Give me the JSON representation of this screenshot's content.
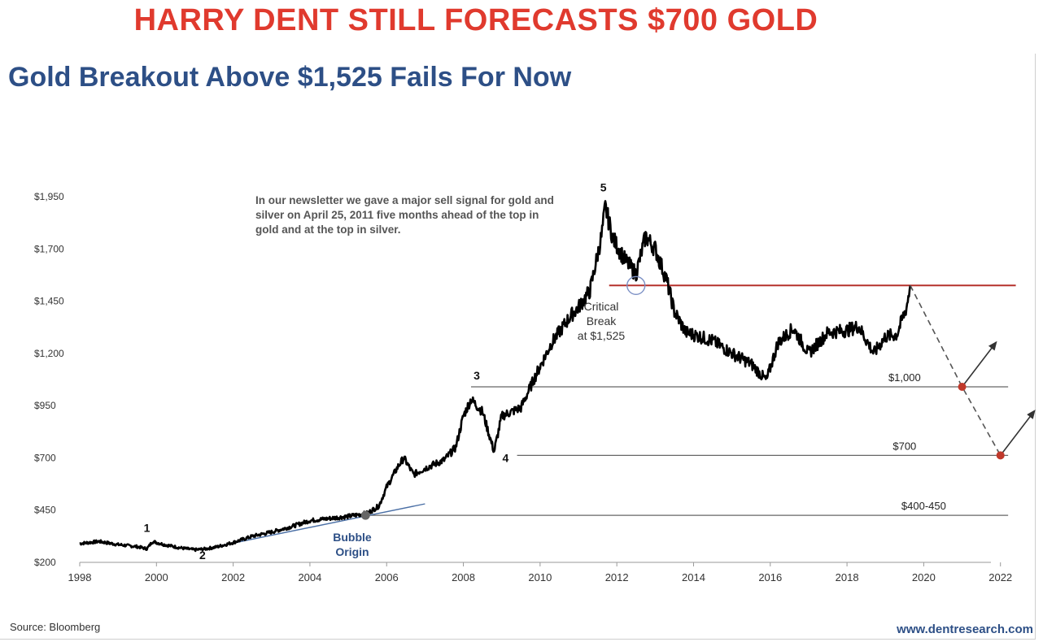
{
  "banner": "HARRY DENT STILL FORECASTS $700 GOLD",
  "subtitle": "Gold Breakout Above $1,525 Fails For Now",
  "note": "In our newsletter we gave a major sell signal for gold and silver on April 25, 2011 five months ahead of the top in gold and at the top in silver.",
  "critical_break": [
    "Critical",
    "Break",
    "at $1,525"
  ],
  "bubble_origin": [
    "Bubble",
    "Origin"
  ],
  "source": "Source: Bloomberg",
  "website": "www.dentresearch.com",
  "colors": {
    "banner": "#e03a2e",
    "subtitle": "#2d4f86",
    "price_line": "#000000",
    "resistance": "#b5312b",
    "support": "#555555",
    "forecast_dot": "#c0392b",
    "trend": "#4a6fa5"
  },
  "chart_data": {
    "type": "line",
    "y_ticks": [
      "$200",
      "$450",
      "$700",
      "$950",
      "$1,200",
      "$1,450",
      "$1,700",
      "$1,950"
    ],
    "y_tick_values": [
      200,
      450,
      700,
      950,
      1200,
      1450,
      1700,
      1950
    ],
    "x_ticks": [
      "1998",
      "2000",
      "2002",
      "2004",
      "2006",
      "2008",
      "2010",
      "2012",
      "2014",
      "2016",
      "2018",
      "2020",
      "2022"
    ],
    "x_tick_values": [
      1998,
      2000,
      2002,
      2004,
      2006,
      2008,
      2010,
      2012,
      2014,
      2016,
      2018,
      2020,
      2022
    ],
    "xlim": [
      1998,
      2022.6
    ],
    "ylim": [
      200,
      1950
    ],
    "series": [
      {
        "x": [
          1998.0,
          1998.5,
          1999.0,
          1999.5,
          1999.75,
          1999.9,
          2000.2,
          2000.6,
          2001.0,
          2001.3,
          2001.6,
          2002.0,
          2002.5,
          2003.0,
          2003.5,
          2004.0,
          2004.5,
          2005.0,
          2005.5,
          2005.8,
          2006.0,
          2006.3,
          2006.45,
          2006.7,
          2007.0,
          2007.5,
          2007.8,
          2008.0,
          2008.2,
          2008.5,
          2008.8,
          2009.0,
          2009.5,
          2009.9,
          2010.3,
          2010.8,
          2011.0,
          2011.3,
          2011.6,
          2011.7,
          2011.9,
          2012.2,
          2012.5,
          2012.75,
          2013.0,
          2013.3,
          2013.5,
          2013.8,
          2014.0,
          2014.5,
          2015.0,
          2015.5,
          2015.9,
          2016.2,
          2016.6,
          2017.0,
          2017.5,
          2018.0,
          2018.3,
          2018.7,
          2019.0,
          2019.3,
          2019.55,
          2019.65
        ],
        "values": [
          290,
          300,
          285,
          275,
          265,
          300,
          285,
          270,
          260,
          265,
          275,
          295,
          325,
          345,
          370,
          400,
          410,
          420,
          435,
          470,
          560,
          660,
          700,
          620,
          650,
          690,
          750,
          900,
          980,
          920,
          730,
          900,
          940,
          1100,
          1250,
          1380,
          1420,
          1500,
          1760,
          1900,
          1750,
          1650,
          1580,
          1760,
          1700,
          1550,
          1400,
          1300,
          1290,
          1260,
          1200,
          1150,
          1070,
          1250,
          1320,
          1200,
          1300,
          1310,
          1330,
          1200,
          1280,
          1290,
          1420,
          1525
        ]
      }
    ],
    "levels": [
      {
        "label": "",
        "value": 1525
      },
      {
        "label": "$1,000",
        "value": 1040
      },
      {
        "label": "$700",
        "value": 712
      },
      {
        "label": "$400-450",
        "value": 425
      }
    ],
    "forecast": {
      "x": [
        2019.65,
        2021.0,
        2022.0
      ],
      "values": [
        1525,
        1040,
        712
      ]
    },
    "wave_labels": [
      {
        "label": "1",
        "x": 1999.75,
        "y": 345
      },
      {
        "label": "2",
        "x": 2001.2,
        "y": 215
      },
      {
        "label": "3",
        "x": 2008.35,
        "y": 1075
      },
      {
        "label": "4",
        "x": 2009.1,
        "y": 680
      },
      {
        "label": "5",
        "x": 2011.65,
        "y": 1975
      }
    ]
  }
}
